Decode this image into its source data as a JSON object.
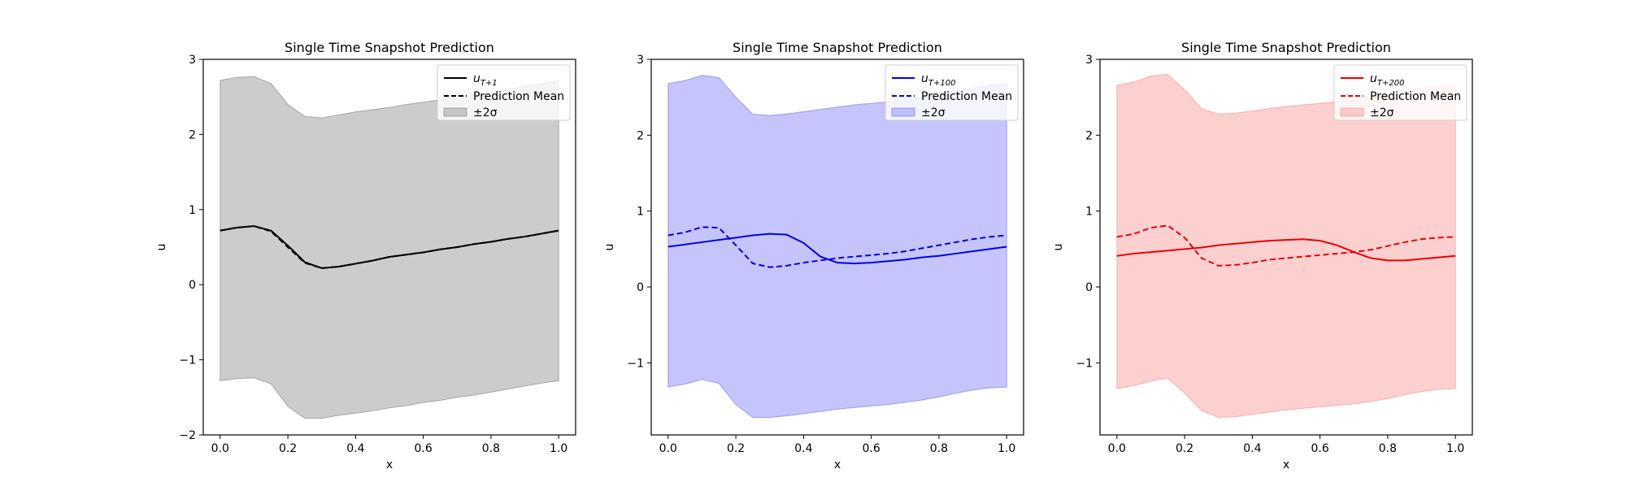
{
  "chart_data": [
    {
      "type": "line",
      "title": "Single Time Snapshot Prediction",
      "xlabel": "x",
      "ylabel": "u",
      "xlim": [
        -0.05,
        1.05
      ],
      "ylim": [
        -2.0,
        3.0
      ],
      "xticks": [
        0.0,
        0.2,
        0.4,
        0.6,
        0.8,
        1.0
      ],
      "xtick_labels": [
        "0.0",
        "0.2",
        "0.4",
        "0.6",
        "0.8",
        "1.0"
      ],
      "yticks": [
        -2,
        -1,
        0,
        1,
        2,
        3
      ],
      "ytick_labels": [
        "−2",
        "−1",
        "0",
        "1",
        "2",
        "3"
      ],
      "color": "#000000",
      "band_color": "#808080",
      "legend_position": "upper right",
      "legend": {
        "truth_main": "u",
        "truth_sub": "T+1",
        "mean": "Prediction Mean",
        "band": "±2σ"
      },
      "x": [
        0.0,
        0.05,
        0.1,
        0.15,
        0.2,
        0.25,
        0.3,
        0.35,
        0.4,
        0.45,
        0.5,
        0.55,
        0.6,
        0.65,
        0.7,
        0.75,
        0.8,
        0.85,
        0.9,
        0.95,
        1.0
      ],
      "series": [
        {
          "name": "u_{T+1}",
          "style": "solid",
          "values": [
            0.72,
            0.76,
            0.78,
            0.72,
            0.52,
            0.3,
            0.22,
            0.24,
            0.28,
            0.32,
            0.37,
            0.4,
            0.43,
            0.47,
            0.5,
            0.54,
            0.57,
            0.61,
            0.64,
            0.68,
            0.72
          ]
        },
        {
          "name": "Prediction Mean",
          "style": "dashed",
          "values": [
            0.72,
            0.76,
            0.78,
            0.71,
            0.5,
            0.29,
            0.22,
            0.24,
            0.28,
            0.32,
            0.37,
            0.4,
            0.43,
            0.47,
            0.5,
            0.54,
            0.57,
            0.61,
            0.64,
            0.68,
            0.72
          ]
        }
      ],
      "band": {
        "upper": [
          2.72,
          2.76,
          2.77,
          2.68,
          2.4,
          2.24,
          2.22,
          2.26,
          2.3,
          2.33,
          2.36,
          2.4,
          2.43,
          2.46,
          2.49,
          2.53,
          2.56,
          2.6,
          2.64,
          2.68,
          2.72
        ],
        "lower": [
          -1.28,
          -1.25,
          -1.24,
          -1.32,
          -1.62,
          -1.78,
          -1.78,
          -1.74,
          -1.71,
          -1.68,
          -1.64,
          -1.61,
          -1.57,
          -1.54,
          -1.5,
          -1.47,
          -1.43,
          -1.39,
          -1.35,
          -1.31,
          -1.28
        ]
      }
    },
    {
      "type": "line",
      "title": "Single Time Snapshot Prediction",
      "xlabel": "x",
      "ylabel": "u",
      "xlim": [
        -0.05,
        1.05
      ],
      "ylim": [
        -1.95,
        3.0
      ],
      "xticks": [
        0.0,
        0.2,
        0.4,
        0.6,
        0.8,
        1.0
      ],
      "xtick_labels": [
        "0.0",
        "0.2",
        "0.4",
        "0.6",
        "0.8",
        "1.0"
      ],
      "yticks": [
        -1,
        0,
        1,
        2,
        3
      ],
      "ytick_labels": [
        "−1",
        "0",
        "1",
        "2",
        "3"
      ],
      "color": "#0000ee",
      "band_color": "#6f6ff7",
      "legend_position": "upper right",
      "legend": {
        "truth_main": "u",
        "truth_sub": "T+100",
        "mean": "Prediction Mean",
        "band": "±2σ"
      },
      "x": [
        0.0,
        0.05,
        0.1,
        0.15,
        0.2,
        0.25,
        0.3,
        0.35,
        0.4,
        0.45,
        0.5,
        0.55,
        0.6,
        0.65,
        0.7,
        0.75,
        0.8,
        0.85,
        0.9,
        0.95,
        1.0
      ],
      "series": [
        {
          "name": "u_{T+100}",
          "style": "solid",
          "values": [
            0.53,
            0.56,
            0.59,
            0.62,
            0.65,
            0.68,
            0.7,
            0.69,
            0.58,
            0.4,
            0.32,
            0.31,
            0.32,
            0.34,
            0.36,
            0.39,
            0.41,
            0.44,
            0.47,
            0.5,
            0.53
          ]
        },
        {
          "name": "Prediction Mean",
          "style": "dashed",
          "values": [
            0.68,
            0.72,
            0.79,
            0.78,
            0.55,
            0.31,
            0.26,
            0.28,
            0.32,
            0.35,
            0.38,
            0.4,
            0.42,
            0.44,
            0.47,
            0.51,
            0.55,
            0.59,
            0.63,
            0.66,
            0.68
          ]
        }
      ],
      "band": {
        "upper": [
          2.68,
          2.72,
          2.79,
          2.76,
          2.5,
          2.28,
          2.26,
          2.28,
          2.31,
          2.34,
          2.37,
          2.4,
          2.42,
          2.44,
          2.47,
          2.5,
          2.54,
          2.58,
          2.62,
          2.66,
          2.68
        ],
        "lower": [
          -1.32,
          -1.28,
          -1.22,
          -1.27,
          -1.55,
          -1.72,
          -1.72,
          -1.7,
          -1.67,
          -1.64,
          -1.61,
          -1.59,
          -1.57,
          -1.55,
          -1.52,
          -1.49,
          -1.45,
          -1.4,
          -1.36,
          -1.33,
          -1.32
        ]
      }
    },
    {
      "type": "line",
      "title": "Single Time Snapshot Prediction",
      "xlabel": "x",
      "ylabel": "u",
      "xlim": [
        -0.05,
        1.05
      ],
      "ylim": [
        -1.95,
        3.0
      ],
      "xticks": [
        0.0,
        0.2,
        0.4,
        0.6,
        0.8,
        1.0
      ],
      "xtick_labels": [
        "0.0",
        "0.2",
        "0.4",
        "0.6",
        "0.8",
        "1.0"
      ],
      "yticks": [
        -1,
        0,
        1,
        2,
        3
      ],
      "ytick_labels": [
        "−1",
        "0",
        "1",
        "2",
        "3"
      ],
      "color": "#ee0000",
      "band_color": "#f98a8a",
      "legend_position": "upper right",
      "legend": {
        "truth_main": "u",
        "truth_sub": "T+200",
        "mean": "Prediction Mean",
        "band": "±2σ"
      },
      "x": [
        0.0,
        0.05,
        0.1,
        0.15,
        0.2,
        0.25,
        0.3,
        0.35,
        0.4,
        0.45,
        0.5,
        0.55,
        0.6,
        0.65,
        0.7,
        0.75,
        0.8,
        0.85,
        0.9,
        0.95,
        1.0
      ],
      "series": [
        {
          "name": "u_{T+200}",
          "style": "solid",
          "values": [
            0.41,
            0.44,
            0.46,
            0.48,
            0.5,
            0.52,
            0.55,
            0.57,
            0.59,
            0.61,
            0.62,
            0.63,
            0.61,
            0.55,
            0.46,
            0.38,
            0.35,
            0.35,
            0.37,
            0.39,
            0.41
          ]
        },
        {
          "name": "Prediction Mean",
          "style": "dashed",
          "values": [
            0.66,
            0.7,
            0.78,
            0.81,
            0.65,
            0.38,
            0.28,
            0.29,
            0.32,
            0.36,
            0.38,
            0.4,
            0.42,
            0.44,
            0.46,
            0.49,
            0.54,
            0.59,
            0.63,
            0.65,
            0.66
          ]
        }
      ],
      "band": {
        "upper": [
          2.66,
          2.7,
          2.78,
          2.8,
          2.6,
          2.35,
          2.28,
          2.29,
          2.32,
          2.35,
          2.38,
          2.4,
          2.42,
          2.44,
          2.46,
          2.49,
          2.53,
          2.58,
          2.62,
          2.65,
          2.66
        ],
        "lower": [
          -1.34,
          -1.3,
          -1.24,
          -1.2,
          -1.4,
          -1.63,
          -1.72,
          -1.71,
          -1.68,
          -1.65,
          -1.62,
          -1.6,
          -1.58,
          -1.56,
          -1.54,
          -1.51,
          -1.47,
          -1.42,
          -1.38,
          -1.35,
          -1.34
        ]
      }
    }
  ]
}
